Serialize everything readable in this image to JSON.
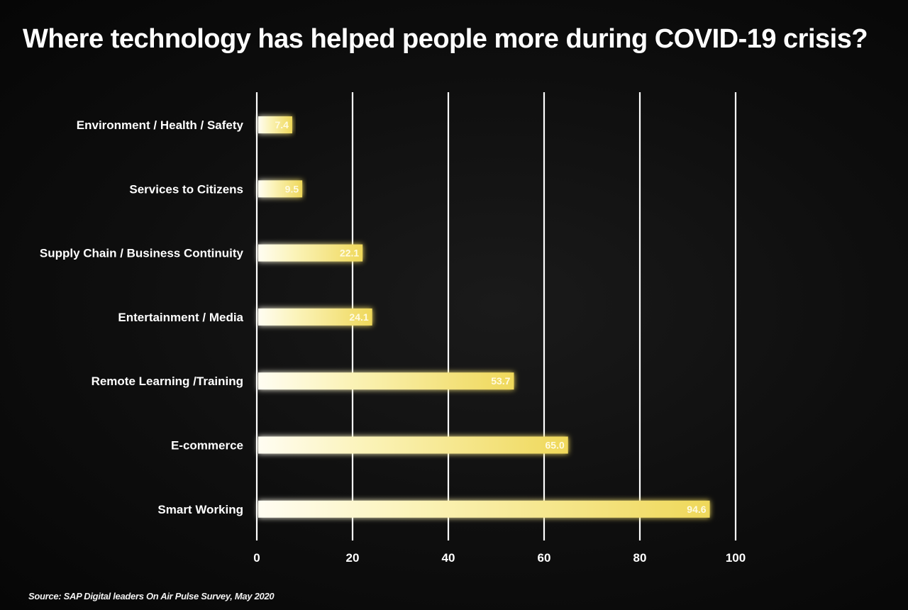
{
  "chart_data": {
    "type": "bar",
    "orientation": "horizontal",
    "title": "Where technology has helped people more during COVID-19 crisis?",
    "source": "Source: SAP Digital leaders On Air Pulse Survey, May 2020",
    "categories": [
      "Environment / Health / Safety",
      "Services to Citizens",
      "Supply Chain / Business Continuity",
      "Entertainment / Media",
      "Remote Learning /Training",
      "E-commerce",
      "Smart Working"
    ],
    "values": [
      7.4,
      9.5,
      22.1,
      24.1,
      53.7,
      65.0,
      94.6
    ],
    "value_labels": [
      "7.4",
      "9.5",
      "22.1",
      "24.1",
      "53.7",
      "65.0",
      "94.6"
    ],
    "xlim": [
      0,
      100
    ],
    "xticks": [
      0,
      20,
      40,
      60,
      80,
      100
    ],
    "grid": true,
    "bar_color": "#f3e57a",
    "bar_glow_color": "#fff6c8",
    "grid_color": "#ffffff",
    "background_color": "#0b0b0b"
  }
}
